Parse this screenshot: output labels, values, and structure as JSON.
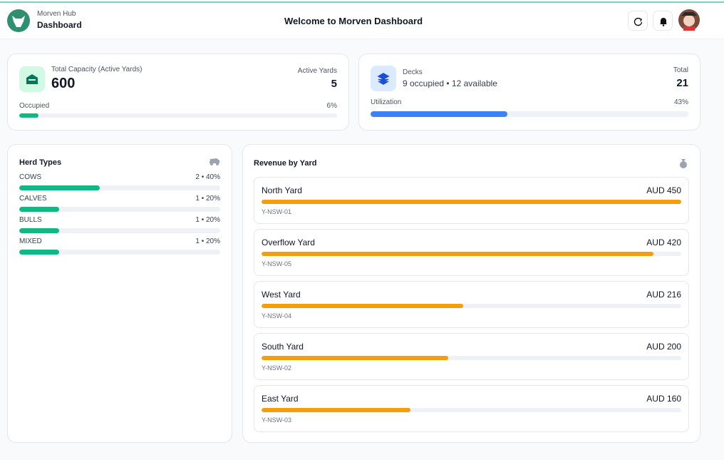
{
  "header": {
    "brand_name": "Morven Hub",
    "brand_sub": "Dashboard",
    "title": "Welcome to Morven Dashboard"
  },
  "capacity": {
    "label": "Total Capacity (Active Yards)",
    "value": 600,
    "active_label": "Active Yards",
    "active_value": 5,
    "occupied_label": "Occupied",
    "occupied": {
      "value": 6,
      "label": "6%"
    }
  },
  "decks": {
    "label": "Decks",
    "summary": "9 occupied • 12 available",
    "total_label": "Total",
    "total": 21,
    "utilization_label": "Utilization",
    "utilization": {
      "value": 43,
      "label": "43%"
    }
  },
  "herd": {
    "title": "Herd Types",
    "items": [
      {
        "name": "COWS",
        "stat": "2 • 40%",
        "percent": 40
      },
      {
        "name": "CALVES",
        "stat": "1 • 20%",
        "percent": 20
      },
      {
        "name": "BULLS",
        "stat": "1 • 20%",
        "percent": 20
      },
      {
        "name": "MIXED",
        "stat": "1 • 20%",
        "percent": 20
      }
    ]
  },
  "revenue": {
    "title": "Revenue by Yard",
    "items": [
      {
        "name": "North Yard",
        "amount_label": "AUD 450",
        "amount": 450,
        "code": "Y-NSW-01"
      },
      {
        "name": "Overflow Yard",
        "amount_label": "AUD 420",
        "amount": 420,
        "code": "Y-NSW-05"
      },
      {
        "name": "West Yard",
        "amount_label": "AUD 216",
        "amount": 216,
        "code": "Y-NSW-04"
      },
      {
        "name": "South Yard",
        "amount_label": "AUD 200",
        "amount": 200,
        "code": "Y-NSW-02"
      },
      {
        "name": "East Yard",
        "amount_label": "AUD 160",
        "amount": 160,
        "code": "Y-NSW-03"
      }
    ]
  }
}
